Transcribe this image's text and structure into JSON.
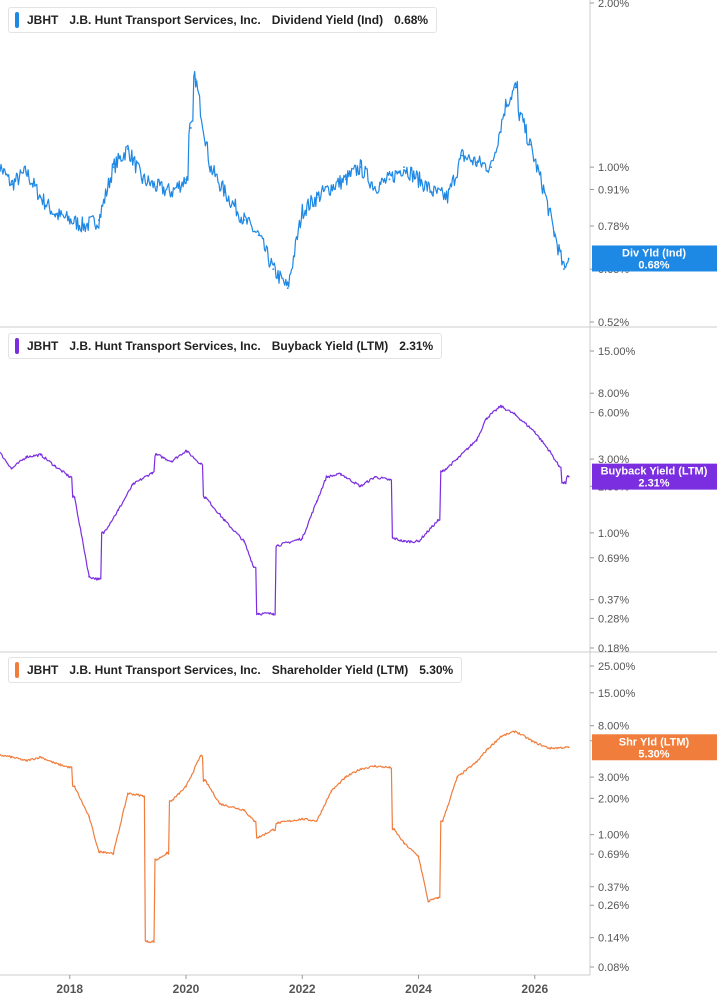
{
  "colors": {
    "dividend": "#1e88e5",
    "buyback": "#7b2ee0",
    "shareholder": "#f07d3c",
    "grid": "#dcdcdc",
    "axis_text": "#555555"
  },
  "x_axis": {
    "ticks": [
      "2018",
      "2020",
      "2022",
      "2024",
      "2026"
    ]
  },
  "panels": [
    {
      "id": "dividend",
      "legend": {
        "ticker": "JBHT",
        "company": "J.B. Hunt Transport Services, Inc.",
        "metric": "Dividend Yield (Ind)",
        "value": "0.68%"
      },
      "badge": {
        "line1": "Div Yld (Ind)",
        "line2": "0.68%"
      },
      "y_ticks": [
        "2.00%",
        "1.00%",
        "0.91%",
        "0.78%",
        "0.65%",
        "0.52%"
      ]
    },
    {
      "id": "buyback",
      "legend": {
        "ticker": "JBHT",
        "company": "J.B. Hunt Transport Services, Inc.",
        "metric": "Buyback Yield (LTM)",
        "value": "2.31%"
      },
      "badge": {
        "line1": "Buyback Yield (LTM)",
        "line2": "2.31%"
      },
      "y_ticks": [
        "15.00%",
        "8.00%",
        "6.00%",
        "3.00%",
        "2.00%",
        "1.00%",
        "0.69%",
        "0.37%",
        "0.28%",
        "0.18%"
      ]
    },
    {
      "id": "shareholder",
      "legend": {
        "ticker": "JBHT",
        "company": "J.B. Hunt Transport Services, Inc.",
        "metric": "Shareholder Yield (LTM)",
        "value": "5.30%"
      },
      "badge": {
        "line1": "Shr Yld (LTM)",
        "line2": "5.30%"
      },
      "y_ticks": [
        "25.00%",
        "15.00%",
        "8.00%",
        "6.00%",
        "3.00%",
        "2.00%",
        "1.00%",
        "0.69%",
        "0.37%",
        "0.26%",
        "0.14%",
        "0.08%"
      ]
    }
  ],
  "chart_data": [
    {
      "type": "line",
      "title": "JBHT J.B. Hunt Transport Services, Inc. Dividend Yield (Ind) 0.68%",
      "y_scale": "log",
      "ylim": [
        0.52,
        2.0
      ],
      "series": [
        {
          "name": "Dividend Yield (Ind)",
          "x": [
            "2016-10",
            "2017-01",
            "2017-04",
            "2017-07",
            "2017-10",
            "2018-01",
            "2018-04",
            "2018-07",
            "2018-10",
            "2019-01",
            "2019-04",
            "2019-07",
            "2019-10",
            "2020-01",
            "2020-02",
            "2020-03",
            "2020-06",
            "2020-09",
            "2021-01",
            "2021-04",
            "2021-07",
            "2021-10",
            "2022-01",
            "2022-04",
            "2022-07",
            "2022-10",
            "2023-01",
            "2023-04",
            "2023-07",
            "2023-10",
            "2024-01",
            "2024-04",
            "2024-07",
            "2024-10",
            "2025-01",
            "2025-04",
            "2025-07",
            "2025-09",
            "2025-10",
            "2025-12",
            "2026-03",
            "2026-05",
            "2026-07",
            "2026-08"
          ],
          "y": [
            1.02,
            0.93,
            0.98,
            0.88,
            0.82,
            0.8,
            0.78,
            0.8,
            1.0,
            1.08,
            0.95,
            0.92,
            0.9,
            0.95,
            1.18,
            1.45,
            1.0,
            0.9,
            0.8,
            0.75,
            0.65,
            0.6,
            0.83,
            0.88,
            0.92,
            0.95,
            1.0,
            0.92,
            0.95,
            1.0,
            0.95,
            0.9,
            0.88,
            1.05,
            1.02,
            1.0,
            1.3,
            1.4,
            1.25,
            1.1,
            0.9,
            0.76,
            0.65,
            0.68
          ]
        }
      ]
    },
    {
      "type": "line",
      "title": "JBHT J.B. Hunt Transport Services, Inc. Buyback Yield (LTM) 2.31%",
      "y_scale": "log",
      "ylim": [
        0.18,
        15.0
      ],
      "series": [
        {
          "name": "Buyback Yield (LTM)",
          "x": [
            "2016-10",
            "2017-01",
            "2017-04",
            "2017-07",
            "2017-10",
            "2018-01",
            "2018-02",
            "2018-05",
            "2018-07",
            "2018-08",
            "2018-11",
            "2019-02",
            "2019-06",
            "2019-07",
            "2019-10",
            "2020-01",
            "2020-04",
            "2020-05",
            "2020-09",
            "2021-01",
            "2021-03",
            "2021-04",
            "2021-07",
            "2021-08",
            "2022-01",
            "2022-04",
            "2022-06",
            "2022-09",
            "2023-01",
            "2023-04",
            "2023-07",
            "2023-08",
            "2023-10",
            "2024-01",
            "2024-05",
            "2024-06",
            "2024-09",
            "2025-01",
            "2025-03",
            "2025-06",
            "2025-09",
            "2026-01",
            "2026-04",
            "2026-06",
            "2026-07",
            "2026-08"
          ],
          "y": [
            3.5,
            2.6,
            3.1,
            3.2,
            2.7,
            2.3,
            1.7,
            0.52,
            0.5,
            1.0,
            1.4,
            2.05,
            2.45,
            3.2,
            2.9,
            3.4,
            2.8,
            1.7,
            1.2,
            0.88,
            0.6,
            0.3,
            0.3,
            0.83,
            0.92,
            1.6,
            2.3,
            2.4,
            2.0,
            2.3,
            2.2,
            0.92,
            0.88,
            0.88,
            1.2,
            2.5,
            3.0,
            4.0,
            5.5,
            6.6,
            5.8,
            4.5,
            3.4,
            2.7,
            2.1,
            2.31
          ]
        }
      ]
    },
    {
      "type": "line",
      "title": "JBHT J.B. Hunt Transport Services, Inc. Shareholder Yield (LTM) 5.30%",
      "y_scale": "log",
      "ylim": [
        0.08,
        25.0
      ],
      "series": [
        {
          "name": "Shareholder Yield (LTM)",
          "x": [
            "2016-10",
            "2017-01",
            "2017-04",
            "2017-07",
            "2017-10",
            "2018-01",
            "2018-02",
            "2018-05",
            "2018-07",
            "2018-08",
            "2018-10",
            "2019-01",
            "2019-04",
            "2019-05",
            "2019-06",
            "2019-07",
            "2019-09",
            "2019-10",
            "2020-01",
            "2020-04",
            "2020-05",
            "2020-08",
            "2021-01",
            "2021-03",
            "2021-04",
            "2021-07",
            "2021-08",
            "2022-01",
            "2022-04",
            "2022-07",
            "2022-10",
            "2023-01",
            "2023-04",
            "2023-07",
            "2023-08",
            "2023-10",
            "2024-01",
            "2024-03",
            "2024-05",
            "2024-06",
            "2024-09",
            "2025-01",
            "2025-03",
            "2025-06",
            "2025-09",
            "2026-01",
            "2026-04",
            "2026-08"
          ],
          "y": [
            4.6,
            4.4,
            4.1,
            4.4,
            3.9,
            3.6,
            2.5,
            1.4,
            0.72,
            0.72,
            0.7,
            2.2,
            2.1,
            0.13,
            0.13,
            0.62,
            0.7,
            1.9,
            2.5,
            4.5,
            2.8,
            1.8,
            1.6,
            1.3,
            0.95,
            1.1,
            1.25,
            1.35,
            1.3,
            2.3,
            3.0,
            3.5,
            3.7,
            3.6,
            1.1,
            0.85,
            0.66,
            0.28,
            0.3,
            1.3,
            3.0,
            4.0,
            5.0,
            6.5,
            7.2,
            5.8,
            5.2,
            5.3
          ]
        }
      ]
    }
  ]
}
